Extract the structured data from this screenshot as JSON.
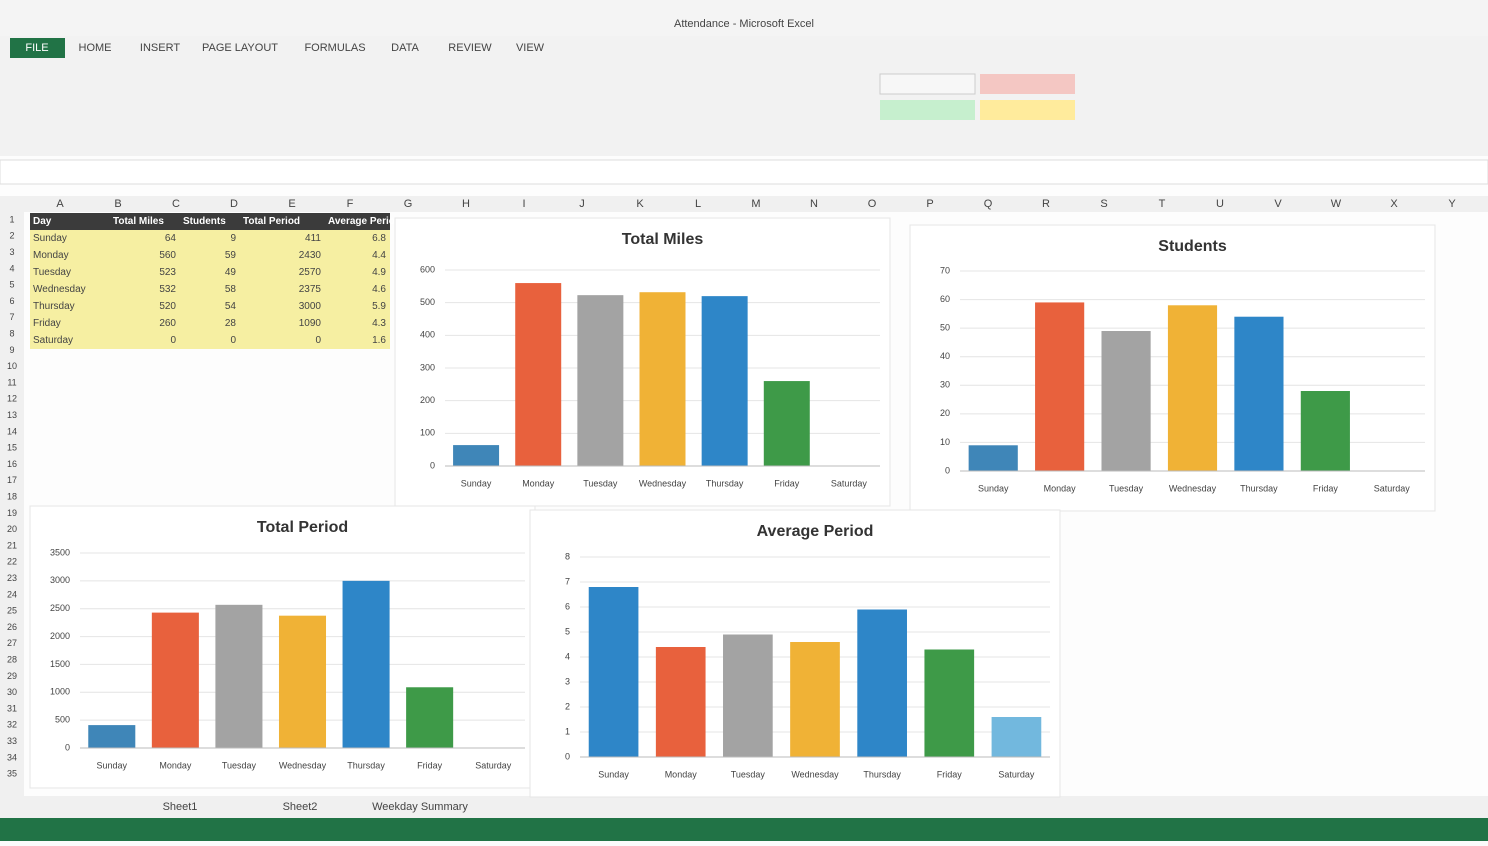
{
  "window": {
    "title": "Attendance - Microsoft Excel",
    "tabs": [
      "FILE",
      "HOME",
      "INSERT",
      "PAGE LAYOUT",
      "FORMULAS",
      "DATA",
      "REVIEW",
      "VIEW"
    ],
    "sheet_tabs": [
      "Sheet1",
      "Sheet2",
      "Weekday Summary"
    ]
  },
  "sheet": {
    "column_headers": [
      "A",
      "B",
      "C",
      "D",
      "E",
      "F",
      "G",
      "H",
      "I",
      "J",
      "K",
      "L",
      "M",
      "N",
      "O",
      "P",
      "Q",
      "R",
      "S",
      "T",
      "U",
      "V",
      "W",
      "X",
      "Y"
    ],
    "row_headers": [
      "1",
      "2",
      "3",
      "4",
      "5",
      "6",
      "7",
      "8",
      "9",
      "10",
      "11",
      "12",
      "13",
      "14",
      "15",
      "16",
      "17",
      "18",
      "19",
      "20",
      "21",
      "22",
      "23",
      "24",
      "25",
      "26",
      "27",
      "28",
      "29",
      "30",
      "31",
      "32",
      "33",
      "34",
      "35"
    ]
  },
  "table": {
    "header": [
      "Day",
      "Total Miles",
      "Students",
      "Total Period",
      "Average Period"
    ],
    "rows": [
      [
        "Sunday",
        "64",
        "9",
        "411",
        "6.8"
      ],
      [
        "Monday",
        "560",
        "59",
        "2430",
        "4.4"
      ],
      [
        "Tuesday",
        "523",
        "49",
        "2570",
        "4.9"
      ],
      [
        "Wednesday",
        "532",
        "58",
        "2375",
        "4.6"
      ],
      [
        "Thursday",
        "520",
        "54",
        "3000",
        "5.9"
      ],
      [
        "Friday",
        "260",
        "28",
        "1090",
        "4.3"
      ],
      [
        "Saturday",
        "0",
        "0",
        "0",
        "1.6"
      ]
    ]
  },
  "chart_data": [
    {
      "type": "bar",
      "title": "Total Miles",
      "categories": [
        "Sunday",
        "Monday",
        "Tuesday",
        "Wednesday",
        "Thursday",
        "Friday",
        "Saturday"
      ],
      "values": [
        64,
        560,
        523,
        532,
        520,
        260,
        0
      ],
      "colors": [
        "#3f86b8",
        "#e8613d",
        "#a3a3a3",
        "#f0b236",
        "#2e86c8",
        "#3e9a48",
        "#72b8de"
      ],
      "ylim": [
        0,
        600
      ],
      "yticks": [
        0,
        100,
        200,
        300,
        400,
        500,
        600
      ],
      "grid": true
    },
    {
      "type": "bar",
      "title": "Students",
      "categories": [
        "Sunday",
        "Monday",
        "Tuesday",
        "Wednesday",
        "Thursday",
        "Friday",
        "Saturday"
      ],
      "values": [
        9,
        59,
        49,
        58,
        54,
        28,
        0
      ],
      "colors": [
        "#3f86b8",
        "#e8613d",
        "#a3a3a3",
        "#f0b236",
        "#2e86c8",
        "#3e9a48",
        "#72b8de"
      ],
      "ylim": [
        0,
        70
      ],
      "yticks": [
        0,
        10,
        20,
        30,
        40,
        50,
        60,
        70
      ],
      "grid": true
    },
    {
      "type": "bar",
      "title": "Total Period",
      "categories": [
        "Sunday",
        "Monday",
        "Tuesday",
        "Wednesday",
        "Thursday",
        "Friday",
        "Saturday"
      ],
      "values": [
        411,
        2430,
        2570,
        2375,
        3000,
        1090,
        0
      ],
      "colors": [
        "#3f86b8",
        "#e8613d",
        "#a3a3a3",
        "#f0b236",
        "#2e86c8",
        "#3e9a48",
        "#72b8de"
      ],
      "ylim": [
        0,
        3500
      ],
      "yticks": [
        0,
        500,
        1000,
        1500,
        2000,
        2500,
        3000,
        3500
      ],
      "grid": true
    },
    {
      "type": "bar",
      "title": "Average Period",
      "categories": [
        "Sunday",
        "Monday",
        "Tuesday",
        "Wednesday",
        "Thursday",
        "Friday",
        "Saturday"
      ],
      "values": [
        6.8,
        4.4,
        4.9,
        4.6,
        5.9,
        4.3,
        1.6
      ],
      "colors": [
        "#2e86c8",
        "#e8613d",
        "#a3a3a3",
        "#f0b236",
        "#2e86c8",
        "#3e9a48",
        "#72b8de"
      ],
      "ylim": [
        0,
        8
      ],
      "yticks": [
        0,
        1,
        2,
        3,
        4,
        5,
        6,
        7,
        8
      ],
      "grid": true
    }
  ]
}
